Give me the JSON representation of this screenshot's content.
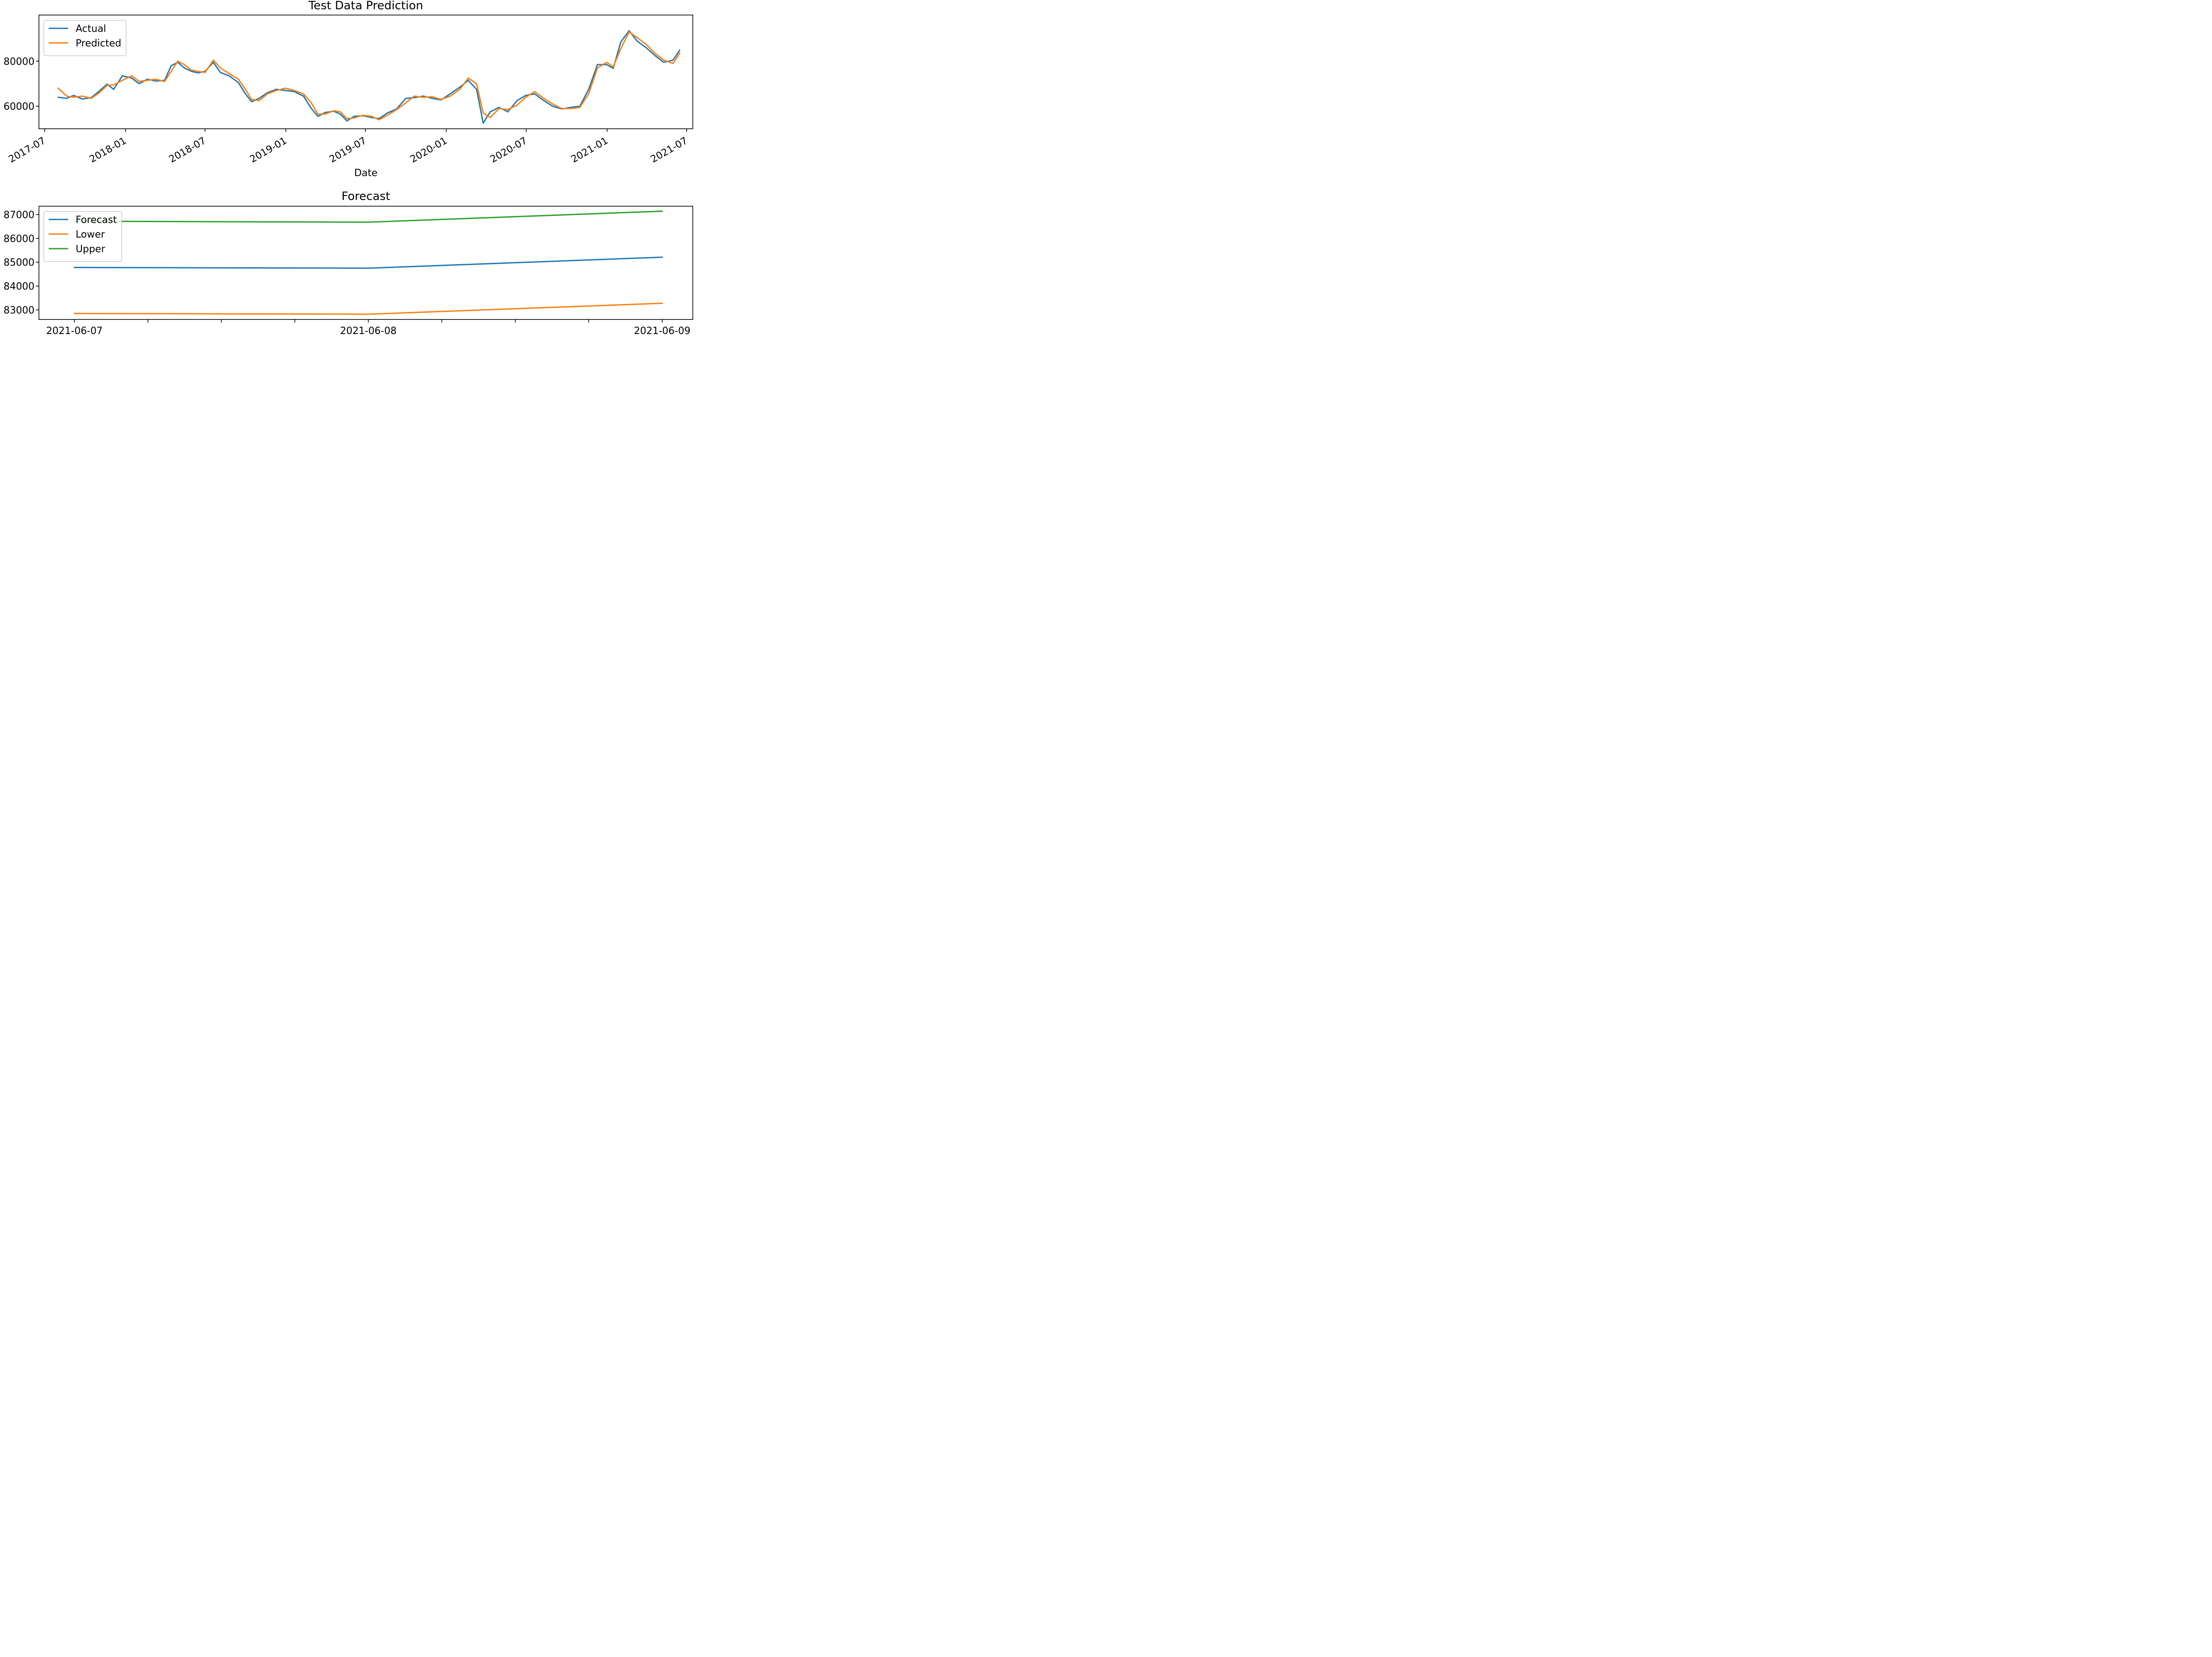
{
  "chart_data": [
    {
      "type": "line",
      "title": "Test Data Prediction",
      "xlabel": "Date",
      "ylabel": "",
      "x_type": "date",
      "xlim": [
        "2017-06-18",
        "2021-07-15"
      ],
      "ylim": [
        50000,
        100500
      ],
      "x_ticks": [
        "2017-07",
        "2018-01",
        "2018-07",
        "2019-01",
        "2019-07",
        "2020-01",
        "2020-07",
        "2021-01",
        "2021-07"
      ],
      "y_ticks": [
        60000,
        80000
      ],
      "grid": false,
      "legend_position": "upper-left",
      "series": [
        {
          "name": "Actual",
          "color": "#1f77b4",
          "points": [
            [
              "2017-08-01",
              64000
            ],
            [
              "2017-08-20",
              63500
            ],
            [
              "2017-09-05",
              64800
            ],
            [
              "2017-09-25",
              63200
            ],
            [
              "2017-10-15",
              63800
            ],
            [
              "2017-11-01",
              66500
            ],
            [
              "2017-11-20",
              69800
            ],
            [
              "2017-12-05",
              67500
            ],
            [
              "2017-12-25",
              73500
            ],
            [
              "2018-01-15",
              72500
            ],
            [
              "2018-02-01",
              70000
            ],
            [
              "2018-02-20",
              72000
            ],
            [
              "2018-03-10",
              71200
            ],
            [
              "2018-03-31",
              71500
            ],
            [
              "2018-04-15",
              78000
            ],
            [
              "2018-04-30",
              79500
            ],
            [
              "2018-05-15",
              77000
            ],
            [
              "2018-05-31",
              75500
            ],
            [
              "2018-06-15",
              74800
            ],
            [
              "2018-07-01",
              75500
            ],
            [
              "2018-07-20",
              79500
            ],
            [
              "2018-08-05",
              75000
            ],
            [
              "2018-08-25",
              73500
            ],
            [
              "2018-09-15",
              70500
            ],
            [
              "2018-10-01",
              65500
            ],
            [
              "2018-10-15",
              62000
            ],
            [
              "2018-11-01",
              63500
            ],
            [
              "2018-11-20",
              66000
            ],
            [
              "2018-12-10",
              67500
            ],
            [
              "2018-12-31",
              67000
            ],
            [
              "2019-01-20",
              66500
            ],
            [
              "2019-02-10",
              64500
            ],
            [
              "2019-02-28",
              59000
            ],
            [
              "2019-03-15",
              55500
            ],
            [
              "2019-03-31",
              57200
            ],
            [
              "2019-04-20",
              57800
            ],
            [
              "2019-05-05",
              56500
            ],
            [
              "2019-05-20",
              53500
            ],
            [
              "2019-06-05",
              55500
            ],
            [
              "2019-06-25",
              55800
            ],
            [
              "2019-07-15",
              55000
            ],
            [
              "2019-08-01",
              54500
            ],
            [
              "2019-08-20",
              57000
            ],
            [
              "2019-09-10",
              58800
            ],
            [
              "2019-10-01",
              63500
            ],
            [
              "2019-10-20",
              63800
            ],
            [
              "2019-11-10",
              64500
            ],
            [
              "2019-11-30",
              63500
            ],
            [
              "2019-12-20",
              62800
            ],
            [
              "2020-01-10",
              65500
            ],
            [
              "2020-02-01",
              68500
            ],
            [
              "2020-02-20",
              71500
            ],
            [
              "2020-03-10",
              67500
            ],
            [
              "2020-03-25",
              52500
            ],
            [
              "2020-04-10",
              57500
            ],
            [
              "2020-04-30",
              59500
            ],
            [
              "2020-05-20",
              57500
            ],
            [
              "2020-06-10",
              62500
            ],
            [
              "2020-06-30",
              64800
            ],
            [
              "2020-07-20",
              65500
            ],
            [
              "2020-08-10",
              62500
            ],
            [
              "2020-08-30",
              60000
            ],
            [
              "2020-09-20",
              58800
            ],
            [
              "2020-10-10",
              59500
            ],
            [
              "2020-10-31",
              60000
            ],
            [
              "2020-11-20",
              67500
            ],
            [
              "2020-12-10",
              78500
            ],
            [
              "2020-12-31",
              78500
            ],
            [
              "2021-01-15",
              76800
            ],
            [
              "2021-02-01",
              88500
            ],
            [
              "2021-02-20",
              93500
            ],
            [
              "2021-03-10",
              89000
            ],
            [
              "2021-03-31",
              86000
            ],
            [
              "2021-04-20",
              82500
            ],
            [
              "2021-05-10",
              79500
            ],
            [
              "2021-05-31",
              80500
            ],
            [
              "2021-06-15",
              84800
            ]
          ]
        },
        {
          "name": "Predicted",
          "color": "#ff7f0e",
          "points": [
            [
              "2017-08-01",
              68000
            ],
            [
              "2017-08-20",
              64500
            ],
            [
              "2017-09-05",
              64000
            ],
            [
              "2017-09-25",
              64500
            ],
            [
              "2017-10-15",
              63500
            ],
            [
              "2017-11-01",
              65800
            ],
            [
              "2017-11-20",
              69200
            ],
            [
              "2017-12-05",
              69500
            ],
            [
              "2017-12-25",
              71500
            ],
            [
              "2018-01-15",
              73500
            ],
            [
              "2018-02-01",
              71000
            ],
            [
              "2018-02-20",
              71500
            ],
            [
              "2018-03-10",
              72000
            ],
            [
              "2018-03-31",
              71000
            ],
            [
              "2018-04-15",
              75500
            ],
            [
              "2018-04-30",
              80000
            ],
            [
              "2018-05-15",
              78500
            ],
            [
              "2018-05-31",
              76000
            ],
            [
              "2018-06-15",
              75500
            ],
            [
              "2018-07-01",
              75000
            ],
            [
              "2018-07-20",
              80500
            ],
            [
              "2018-08-05",
              77000
            ],
            [
              "2018-08-25",
              74500
            ],
            [
              "2018-09-15",
              72000
            ],
            [
              "2018-10-01",
              67500
            ],
            [
              "2018-10-15",
              63000
            ],
            [
              "2018-11-01",
              62500
            ],
            [
              "2018-11-20",
              65500
            ],
            [
              "2018-12-10",
              67000
            ],
            [
              "2018-12-31",
              68000
            ],
            [
              "2019-01-20",
              67000
            ],
            [
              "2019-02-10",
              65500
            ],
            [
              "2019-02-28",
              61500
            ],
            [
              "2019-03-15",
              56500
            ],
            [
              "2019-03-31",
              56500
            ],
            [
              "2019-04-20",
              58000
            ],
            [
              "2019-05-05",
              57500
            ],
            [
              "2019-05-20",
              54500
            ],
            [
              "2019-06-05",
              54800
            ],
            [
              "2019-06-25",
              56000
            ],
            [
              "2019-07-15",
              55500
            ],
            [
              "2019-08-01",
              54000
            ],
            [
              "2019-08-20",
              56000
            ],
            [
              "2019-09-10",
              58500
            ],
            [
              "2019-10-01",
              61500
            ],
            [
              "2019-10-20",
              64500
            ],
            [
              "2019-11-10",
              64000
            ],
            [
              "2019-11-30",
              64200
            ],
            [
              "2019-12-20",
              63000
            ],
            [
              "2020-01-10",
              64500
            ],
            [
              "2020-02-01",
              67500
            ],
            [
              "2020-02-20",
              72500
            ],
            [
              "2020-03-10",
              70000
            ],
            [
              "2020-03-25",
              57000
            ],
            [
              "2020-04-10",
              55000
            ],
            [
              "2020-04-30",
              59000
            ],
            [
              "2020-05-20",
              58500
            ],
            [
              "2020-06-10",
              60500
            ],
            [
              "2020-06-30",
              64000
            ],
            [
              "2020-07-20",
              66500
            ],
            [
              "2020-08-10",
              63500
            ],
            [
              "2020-08-30",
              61000
            ],
            [
              "2020-09-20",
              59000
            ],
            [
              "2020-10-10",
              59000
            ],
            [
              "2020-10-31",
              59500
            ],
            [
              "2020-11-20",
              65500
            ],
            [
              "2020-12-10",
              77000
            ],
            [
              "2020-12-31",
              79500
            ],
            [
              "2021-01-15",
              77500
            ],
            [
              "2021-02-01",
              85500
            ],
            [
              "2021-02-20",
              93000
            ],
            [
              "2021-03-10",
              90500
            ],
            [
              "2021-03-31",
              87500
            ],
            [
              "2021-04-20",
              83500
            ],
            [
              "2021-05-10",
              80500
            ],
            [
              "2021-05-31",
              79000
            ],
            [
              "2021-06-15",
              83500
            ]
          ]
        }
      ]
    },
    {
      "type": "line",
      "title": "Forecast",
      "xlabel": "",
      "ylabel": "",
      "x_type": "date",
      "xlim": [
        "2021-06-06T21:06",
        "2021-06-09T02:30"
      ],
      "ylim": [
        82600,
        87350
      ],
      "x_ticks": [
        "2021-06-07",
        "2021-06-08",
        "2021-06-09"
      ],
      "y_ticks": [
        83000,
        84000,
        85000,
        86000,
        87000
      ],
      "grid": false,
      "legend_position": "upper-left",
      "categories": [
        "2021-06-07",
        "2021-06-08",
        "2021-06-09"
      ],
      "series": [
        {
          "name": "Forecast",
          "color": "#1f77b4",
          "values": [
            84780,
            84750,
            85210
          ]
        },
        {
          "name": "Lower",
          "color": "#ff7f0e",
          "values": [
            82850,
            82820,
            83280
          ]
        },
        {
          "name": "Upper",
          "color": "#2ca02c",
          "values": [
            86720,
            86680,
            87140
          ]
        }
      ]
    }
  ]
}
